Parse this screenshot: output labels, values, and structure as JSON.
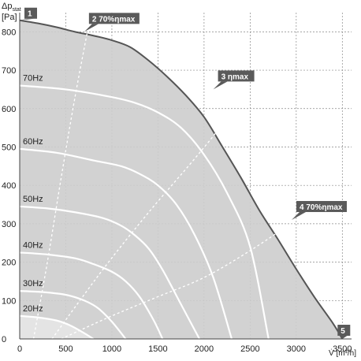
{
  "chart_data": {
    "type": "line",
    "ylabel_main": "Δp",
    "ylabel_sub": "stat",
    "ylabel_unit": "[Pa]",
    "xlabel": "V̇ [m³/h]",
    "xlim": [
      0,
      3600
    ],
    "ylim": [
      0,
      850
    ],
    "xticks": [
      0,
      500,
      1000,
      1500,
      2000,
      2500,
      3000,
      3500
    ],
    "yticks": [
      0,
      100,
      200,
      300,
      400,
      500,
      600,
      700,
      800
    ],
    "grid": true,
    "envelope": {
      "x": [
        0,
        200,
        400,
        600,
        800,
        1000,
        1200,
        1400,
        1600,
        1800,
        2000,
        2200,
        2400,
        2600,
        2800,
        3000,
        3200,
        3400,
        3500
      ],
      "y": [
        830,
        822,
        812,
        800,
        790,
        778,
        760,
        725,
        683,
        635,
        578,
        500,
        420,
        335,
        260,
        182,
        108,
        40,
        0
      ]
    },
    "speed_curves": [
      {
        "name": "70Hz",
        "x": [
          0,
          500,
          1000,
          1250,
          1500,
          1750,
          2000,
          2250,
          2500,
          2700
        ],
        "y": [
          660,
          650,
          630,
          615,
          590,
          550,
          480,
          380,
          240,
          0
        ]
      },
      {
        "name": "60Hz",
        "x": [
          0,
          400,
          800,
          1100,
          1300,
          1500,
          1700,
          1900,
          2100,
          2300
        ],
        "y": [
          495,
          485,
          465,
          450,
          430,
          400,
          350,
          270,
          160,
          0
        ]
      },
      {
        "name": "50Hz",
        "x": [
          0,
          300,
          600,
          900,
          1100,
          1250,
          1400,
          1550,
          1750,
          1950
        ],
        "y": [
          345,
          340,
          330,
          315,
          295,
          270,
          235,
          180,
          90,
          0
        ]
      },
      {
        "name": "40Hz",
        "x": [
          0,
          300,
          600,
          800,
          1000,
          1150,
          1300,
          1450,
          1550
        ],
        "y": [
          225,
          220,
          210,
          195,
          175,
          150,
          110,
          50,
          0
        ]
      },
      {
        "name": "30Hz",
        "x": [
          0,
          250,
          500,
          700,
          850,
          1000,
          1150
        ],
        "y": [
          125,
          122,
          115,
          100,
          80,
          45,
          0
        ]
      },
      {
        "name": "20Hz",
        "x": [
          0,
          200,
          400,
          550,
          700,
          800
        ],
        "y": [
          60,
          56,
          48,
          35,
          15,
          0
        ]
      }
    ],
    "efficiency_lines": [
      {
        "x": [
          150,
          300,
          450,
          600,
          750
        ],
        "y": [
          0,
          200,
          420,
          630,
          820
        ]
      },
      {
        "x": [
          350,
          900,
          1400,
          1900,
          2200,
          2430
        ],
        "y": [
          0,
          180,
          330,
          470,
          560,
          645
        ]
      },
      {
        "x": [
          450,
          1000,
          1500,
          2000,
          2500,
          3000
        ],
        "y": [
          0,
          60,
          110,
          160,
          230,
          310
        ]
      }
    ],
    "markers": [
      {
        "label": "1",
        "x": 0,
        "y": 830,
        "text": ""
      },
      {
        "label": "2",
        "x": 700,
        "y": 800,
        "text": "70%ηmax"
      },
      {
        "label": "3",
        "x": 2100,
        "y": 650,
        "text": "ηmax"
      },
      {
        "label": "4",
        "x": 2950,
        "y": 310,
        "text": "70%ηmax"
      },
      {
        "label": "5",
        "x": 3500,
        "y": 0,
        "text": ""
      }
    ],
    "colors": {
      "envelope_fill": "#cdcdcd",
      "envelope_line": "#555555",
      "low_region_fill": "#e4e4e4",
      "curve": "#ffffff",
      "marker": "#5a5a5a",
      "grid": "#888888"
    }
  }
}
